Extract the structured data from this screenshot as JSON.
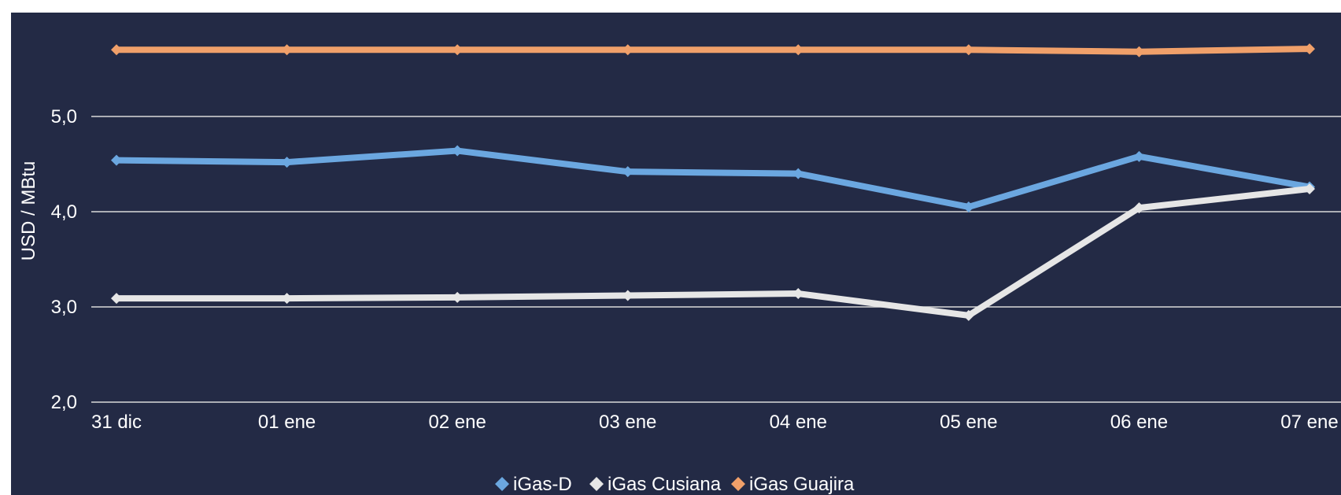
{
  "chart_data": {
    "type": "line",
    "ylabel": "USD / MBtu",
    "xlabel": "",
    "title": "",
    "categories": [
      "31 dic",
      "01 ene",
      "02 ene",
      "03 ene",
      "04 ene",
      "05 ene",
      "06 ene",
      "07 ene"
    ],
    "ylim": [
      2.0,
      6.0
    ],
    "yticks": [
      2.0,
      3.0,
      4.0,
      5.0
    ],
    "ytick_labels": [
      "2,0",
      "3,0",
      "4,0",
      "5,0"
    ],
    "grid": "horizontal",
    "legend_position": "bottom",
    "background": "#232a45",
    "series": [
      {
        "name": "iGas-D",
        "color": "#6ba7e0",
        "values": [
          4.54,
          4.52,
          4.64,
          4.42,
          4.4,
          4.05,
          4.58,
          4.26
        ]
      },
      {
        "name": "iGas Cusiana",
        "color": "#e6e6e6",
        "values": [
          3.09,
          3.09,
          3.1,
          3.12,
          3.14,
          2.91,
          4.04,
          4.24
        ]
      },
      {
        "name": "iGas Guajira",
        "color": "#f0a06a",
        "values": [
          5.7,
          5.7,
          5.7,
          5.7,
          5.7,
          5.7,
          5.68,
          5.71
        ]
      }
    ]
  }
}
